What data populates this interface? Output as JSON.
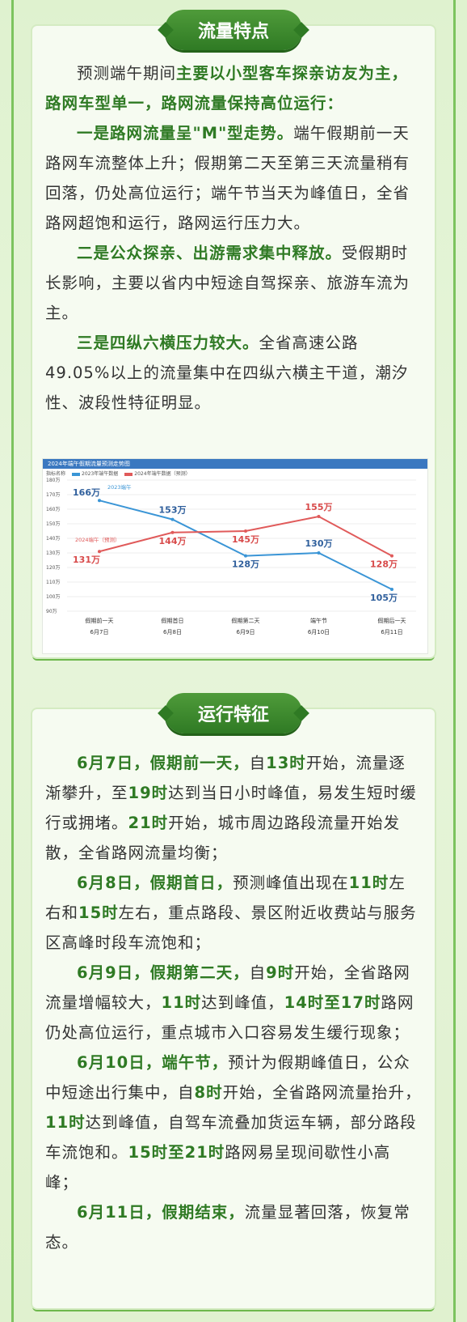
{
  "section1": {
    "title": "流量特点",
    "intro": "预测端午期间",
    "intro_hl": "主要以小型客车探亲访友为主，路网车型单一，路网流量保持高位运行：",
    "p1_hl": "一是路网流量呈\"M\"型走势。",
    "p1": "端午假期前一天路网车流整体上升；假期第二天至第三天流量稍有回落，仍处高位运行；端午节当天为峰值日，全省路网超饱和运行，路网运行压力大。",
    "p2_hl": "二是公众探亲、出游需求集中释放。",
    "p2": "受假期时长影响，主要以省内中短途自驾探亲、旅游车流为主。",
    "p3_hl": "三是四纵六横压力较大。",
    "p3": "全省高速公路49.05%以上的流量集中在四纵六横主干道，潮汐性、波段性特征明显。"
  },
  "chart_data": {
    "type": "line",
    "title": "2024年端午假期流量预测走势图",
    "legend_label": "指标名称",
    "categories": [
      [
        "假期前一天",
        "6月7日"
      ],
      [
        "假期首日",
        "6月8日"
      ],
      [
        "假期第二天",
        "6月9日"
      ],
      [
        "端午节",
        "6月10日"
      ],
      [
        "假期后一天",
        "6月11日"
      ]
    ],
    "ylim": [
      90,
      180
    ],
    "yticks": [
      "180万",
      "170万",
      "160万",
      "150万",
      "140万",
      "130万",
      "120万",
      "110万",
      "100万",
      "90万"
    ],
    "series": [
      {
        "name": "2023年端午数据",
        "color": "#3a95d6",
        "values": [
          166,
          153,
          128,
          130,
          105
        ],
        "labels": [
          "166万",
          "153万",
          "128万",
          "130万",
          "105万"
        ],
        "tag": "2023端午"
      },
      {
        "name": "2024年端午数据（预测）",
        "color": "#e05a5a",
        "values": [
          131,
          144,
          145,
          155,
          128
        ],
        "labels": [
          "131万",
          "144万",
          "145万",
          "155万",
          "128万"
        ],
        "tag": "2024端午（预测）"
      }
    ]
  },
  "section2": {
    "title": "运行特征",
    "items": [
      {
        "date": "6月7日，",
        "tag": "假期前一天，",
        "text": "自",
        "t1": "13时",
        "text2": "开始，流量逐渐攀升，至",
        "t2": "19时",
        "text3": "达到当日小时峰值，易发生短时缓行或拥堵。",
        "t3": "21时",
        "text4": "开始，城市周边路段流量开始发散，全省路网流量均衡；"
      },
      {
        "date": "6月8日，",
        "tag": "假期首日，",
        "text": "预测峰值出现在",
        "t1": "11时",
        "text2": "左右和",
        "t2": "15时",
        "text3": "左右，重点路段、景区附近收费站与服务区高峰时段车流饱和；",
        "t3": "",
        "text4": ""
      },
      {
        "date": "6月9日，",
        "tag": "假期第二天，",
        "text": "自",
        "t1": "9时",
        "text2": "开始，全省路网流量增幅较大，",
        "t2": "11时",
        "text3": "达到峰值，",
        "t3": "14时至17时",
        "text4": "路网仍处高位运行，重点城市入口容易发生缓行现象；"
      },
      {
        "date": "6月10日，",
        "tag": "端午节，",
        "text": "预计为假期峰值日，公众中短途出行集中，自",
        "t1": "8时",
        "text2": "开始，全省路网流量抬升，",
        "t2": "11时",
        "text3": "达到峰值，自驾车流叠加货运车辆，部分路段车流饱和。",
        "t3": "15时至21时",
        "text4": "路网易呈现间歇性小高峰；"
      },
      {
        "date": "6月11日，",
        "tag": "假期结束，",
        "text": "流量显著回落，恢复常态。",
        "t1": "",
        "text2": "",
        "t2": "",
        "text3": "",
        "t3": "",
        "text4": ""
      }
    ]
  }
}
